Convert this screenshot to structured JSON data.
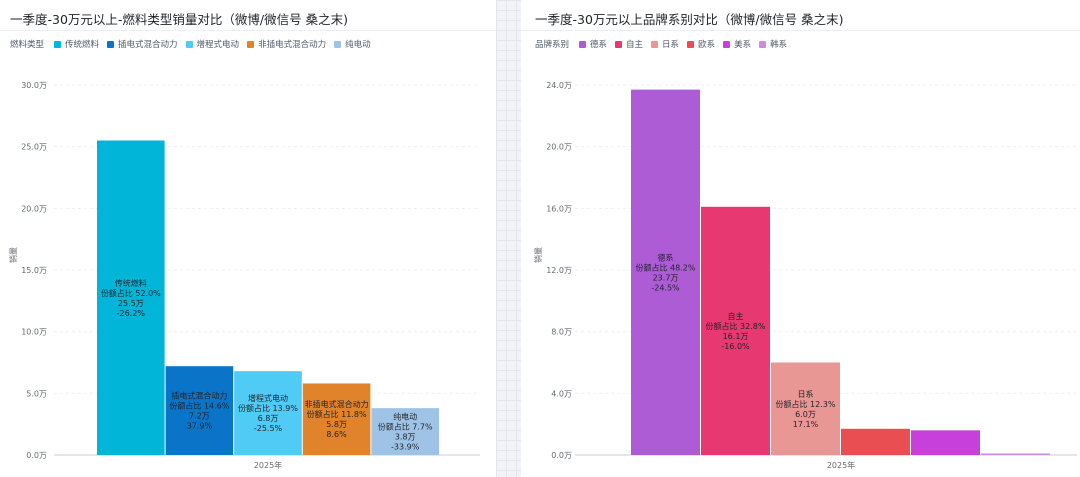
{
  "chart_data": [
    {
      "type": "bar",
      "title": "一季度-30万元以上-燃料类型销量对比（微博/微信号 桑之末)",
      "legend_title": "燃料类型",
      "legend_position": "top-left",
      "xlabel": "2025年",
      "ylabel": "销量",
      "categories": [
        "2025年"
      ],
      "ylim": [
        0,
        30
      ],
      "yticks": [
        "0.0万",
        "5.0万",
        "10.0万",
        "15.0万",
        "20.0万",
        "25.0万",
        "30.0万"
      ],
      "grid": true,
      "series": [
        {
          "name": "传统燃料",
          "color": "#00b5d8",
          "value": 25.5,
          "label_lines": [
            "传统燃料",
            "份额占比 52.0%",
            "25.5万",
            "-26.2%"
          ]
        },
        {
          "name": "插电式混合动力",
          "color": "#0a74c8",
          "value": 7.2,
          "label_lines": [
            "插电式混合动力",
            "份额占比 14.6%",
            "7.2万",
            "37.9%"
          ]
        },
        {
          "name": "增程式电动",
          "color": "#4fcbf5",
          "value": 6.8,
          "label_lines": [
            "增程式电动",
            "份额占比 13.9%",
            "6.8万",
            "-25.5%"
          ]
        },
        {
          "name": "非插电式混合动力",
          "color": "#e0832b",
          "value": 5.8,
          "label_lines": [
            "非插电式混合动力",
            "份额占比 11.8%",
            "5.8万",
            "8.6%"
          ]
        },
        {
          "name": "纯电动",
          "color": "#9fc3e7",
          "value": 3.8,
          "label_lines": [
            "纯电动",
            "份额占比 7.7%",
            "3.8万",
            "-33.9%"
          ]
        }
      ]
    },
    {
      "type": "bar",
      "title": "一季度-30万元以上品牌系别对比（微博/微信号 桑之末)",
      "legend_title": "品牌系别",
      "legend_position": "top-left",
      "xlabel": "2025年",
      "ylabel": "销量",
      "categories": [
        "2025年"
      ],
      "ylim": [
        0,
        24
      ],
      "yticks": [
        "0.0万",
        "4.0万",
        "8.0万",
        "12.0万",
        "16.0万",
        "20.0万",
        "24.0万"
      ],
      "grid": true,
      "series": [
        {
          "name": "德系",
          "color": "#ad5cd6",
          "value": 23.7,
          "label_lines": [
            "德系",
            "份额占比 48.2%",
            "23.7万",
            "-24.5%"
          ]
        },
        {
          "name": "自主",
          "color": "#e83872",
          "value": 16.1,
          "label_lines": [
            "自主",
            "份额占比 32.8%",
            "16.1万",
            "-16.0%"
          ]
        },
        {
          "name": "日系",
          "color": "#e89795",
          "value": 6.0,
          "label_lines": [
            "日系",
            "份额占比 12.3%",
            "6.0万",
            "17.1%"
          ]
        },
        {
          "name": "欧系",
          "color": "#e84e52",
          "value": 1.7,
          "label_lines": []
        },
        {
          "name": "美系",
          "color": "#c740db",
          "value": 1.6,
          "label_lines": []
        },
        {
          "name": "韩系",
          "color": "#c98ee3",
          "value": 0.1,
          "label_lines": []
        }
      ]
    }
  ]
}
